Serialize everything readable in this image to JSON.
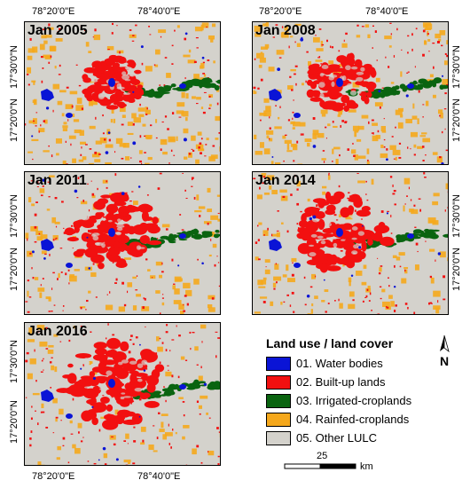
{
  "colors": {
    "water": "#0a14d6",
    "builtup": "#f21010",
    "irrigated": "#0a6410",
    "rainfed": "#f5a81c",
    "other": "#d4d2cc"
  },
  "panels": [
    {
      "id": "p2005",
      "title": "Jan 2005"
    },
    {
      "id": "p2008",
      "title": "Jan 2008"
    },
    {
      "id": "p2011",
      "title": "Jan 2011"
    },
    {
      "id": "p2014",
      "title": "Jan 2014"
    },
    {
      "id": "p2016",
      "title": "Jan 2016"
    }
  ],
  "coords": {
    "lon1": "78°20'0\"E",
    "lon2": "78°40'0\"E",
    "lat1": "17°30'0\"N",
    "lat2": "17°20'0\"N"
  },
  "legend": {
    "title": "Land use / land cover",
    "items": [
      {
        "label": "01. Water bodies",
        "color": "#0a14d6"
      },
      {
        "label": "02. Built-up lands",
        "color": "#f21010"
      },
      {
        "label": "03. Irrigated-croplands",
        "color": "#0a6410"
      },
      {
        "label": "04. Rainfed-croplands",
        "color": "#f5a81c"
      },
      {
        "label": "05. Other LULC",
        "color": "#d4d2cc"
      }
    ]
  },
  "scale": {
    "value": "25",
    "unit": "km"
  },
  "north_icon": "north-arrow-icon"
}
